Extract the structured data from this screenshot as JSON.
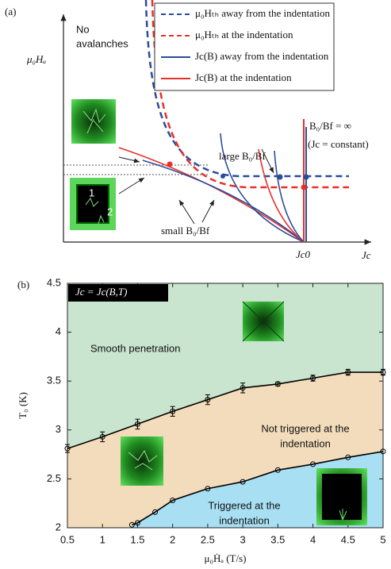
{
  "panel_a": {
    "label": "(a)",
    "y_axis_label": "μ₀Hₐ",
    "x_axis_label": "Jc",
    "origin_label": "Jc0",
    "note_lines": [
      "No",
      "avalanches"
    ],
    "legend": [
      {
        "label": "μ₀Hₜₕ away from the indentation",
        "color": "#2b4c9b",
        "dashed": true
      },
      {
        "label": "μ₀Hₜₕ at the indentation",
        "color": "#e8302a",
        "dashed": true
      },
      {
        "label": "Jc(B) away from the indentation",
        "color": "#2b4c9b",
        "dashed": false
      },
      {
        "label": "Jc(B) at the indentation",
        "color": "#e8302a",
        "dashed": false
      }
    ],
    "annotations": [
      "B₀/Bf = ∞",
      "(Jc = constant)",
      "large B₀/Bf",
      "small B₀/Bf"
    ],
    "inset_labels": [
      "1",
      "2"
    ]
  },
  "chart_data": {
    "type": "line",
    "label": "(b)",
    "inset_text": "Jc = Jc(B,T)",
    "x_label": "μ₀Ḣₐ (T/s)",
    "y_label": "T₀ (K)",
    "xlim": [
      0.5,
      5
    ],
    "ylim": [
      2,
      4.5
    ],
    "xticks": [
      0.5,
      1,
      1.5,
      2,
      2.5,
      3,
      3.5,
      4,
      4.5,
      5
    ],
    "yticks": [
      2,
      2.5,
      3,
      3.5,
      4,
      4.5
    ],
    "series": [
      {
        "color": "#000000",
        "x": [
          0.5,
          1,
          1.5,
          2,
          2.5,
          3,
          3.5,
          4,
          4.5,
          5
        ],
        "values": [
          2.81,
          2.93,
          3.06,
          3.19,
          3.31,
          3.43,
          3.47,
          3.53,
          3.59,
          3.59
        ],
        "errors": [
          0.04,
          0.05,
          0.05,
          0.05,
          0.05,
          0.05,
          0.02,
          0.03,
          0.03,
          0.03
        ]
      },
      {
        "color": "#000000",
        "x": [
          1.42,
          1.5,
          1.75,
          2,
          2.5,
          3,
          3.5,
          4,
          4.5,
          5
        ],
        "values": [
          2.03,
          2.05,
          2.16,
          2.28,
          2.4,
          2.47,
          2.59,
          2.65,
          2.72,
          2.78
        ]
      }
    ],
    "regions": [
      {
        "label": [
          "Smooth penetration"
        ],
        "color": "#c9e4cf"
      },
      {
        "label": [
          "Not triggered at the",
          "indentation"
        ],
        "color": "#f3dcbb"
      },
      {
        "label": [
          "Triggered at the",
          "indentation"
        ],
        "color": "#a9dff3"
      }
    ]
  }
}
